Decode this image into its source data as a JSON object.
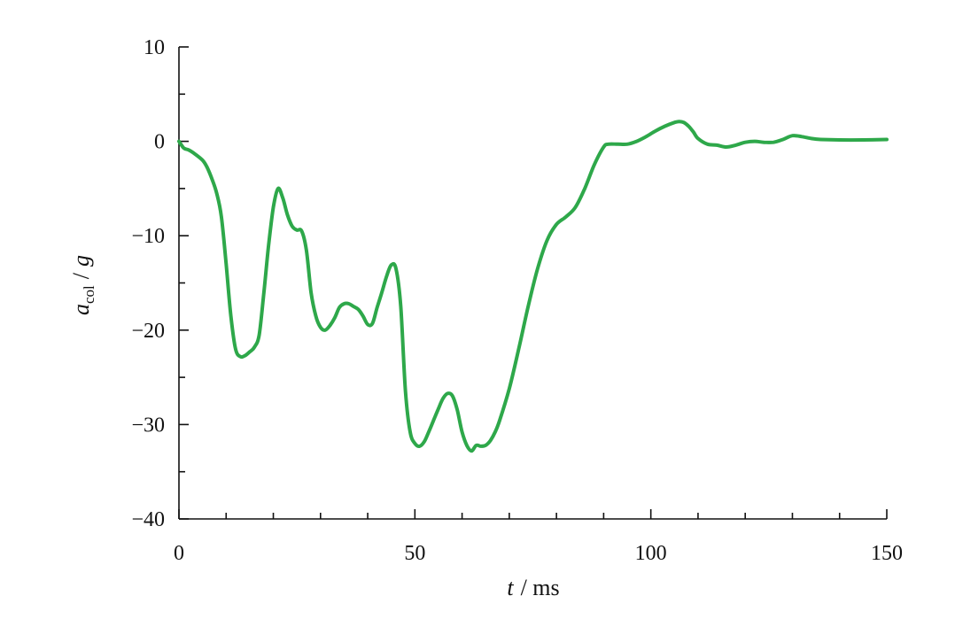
{
  "chart_data": {
    "type": "line",
    "title": "",
    "xlabel": {
      "var": "t",
      "unit": "/ ms"
    },
    "ylabel": {
      "var": "a",
      "sub": "col",
      "unit": "/",
      "unit_var": "g"
    },
    "xlim": [
      0,
      150
    ],
    "ylim": [
      -40,
      10
    ],
    "xticks": [
      0,
      50,
      100,
      150
    ],
    "yticks": [
      10,
      0,
      -10,
      -20,
      -30,
      -40
    ],
    "x_minor_step": 10,
    "y_minor_step": 5,
    "grid": false,
    "legend": "none",
    "series": [
      {
        "color": "#2ea84a",
        "points": [
          [
            0,
            0
          ],
          [
            1,
            -0.7
          ],
          [
            2,
            -0.9
          ],
          [
            3,
            -1.2
          ],
          [
            5,
            -2.0
          ],
          [
            6,
            -2.8
          ],
          [
            7,
            -4.0
          ],
          [
            8,
            -5.5
          ],
          [
            9,
            -8.0
          ],
          [
            10,
            -13.0
          ],
          [
            11,
            -18.5
          ],
          [
            12,
            -22.0
          ],
          [
            13,
            -22.8
          ],
          [
            14,
            -22.7
          ],
          [
            15,
            -22.3
          ],
          [
            16,
            -21.8
          ],
          [
            17,
            -20.5
          ],
          [
            18,
            -16.0
          ],
          [
            19,
            -11.0
          ],
          [
            20,
            -7.0
          ],
          [
            21,
            -5.0
          ],
          [
            22,
            -6.0
          ],
          [
            23,
            -7.8
          ],
          [
            24,
            -9.0
          ],
          [
            25,
            -9.4
          ],
          [
            26,
            -9.5
          ],
          [
            27,
            -11.5
          ],
          [
            28,
            -16.0
          ],
          [
            29,
            -18.5
          ],
          [
            30,
            -19.7
          ],
          [
            31,
            -20.0
          ],
          [
            32,
            -19.5
          ],
          [
            33,
            -18.7
          ],
          [
            34,
            -17.6
          ],
          [
            35,
            -17.2
          ],
          [
            36,
            -17.2
          ],
          [
            37,
            -17.5
          ],
          [
            38,
            -17.8
          ],
          [
            39,
            -18.5
          ],
          [
            40,
            -19.4
          ],
          [
            41,
            -19.3
          ],
          [
            42,
            -17.6
          ],
          [
            43,
            -16.0
          ],
          [
            44,
            -14.3
          ],
          [
            45,
            -13.1
          ],
          [
            46,
            -13.5
          ],
          [
            47,
            -17.5
          ],
          [
            48,
            -26.5
          ],
          [
            49,
            -30.8
          ],
          [
            50,
            -32.0
          ],
          [
            51,
            -32.3
          ],
          [
            52,
            -31.8
          ],
          [
            53,
            -30.7
          ],
          [
            54,
            -29.5
          ],
          [
            55,
            -28.3
          ],
          [
            56,
            -27.2
          ],
          [
            57,
            -26.7
          ],
          [
            58,
            -27.0
          ],
          [
            59,
            -28.5
          ],
          [
            60,
            -30.8
          ],
          [
            61,
            -32.2
          ],
          [
            62,
            -32.8
          ],
          [
            63,
            -32.2
          ],
          [
            64,
            -32.3
          ],
          [
            65,
            -32.2
          ],
          [
            66,
            -31.7
          ],
          [
            67,
            -30.8
          ],
          [
            68,
            -29.5
          ],
          [
            70,
            -26.2
          ],
          [
            72,
            -22.0
          ],
          [
            74,
            -17.5
          ],
          [
            76,
            -13.5
          ],
          [
            78,
            -10.5
          ],
          [
            80,
            -8.8
          ],
          [
            82,
            -8.0
          ],
          [
            84,
            -7.0
          ],
          [
            86,
            -5.0
          ],
          [
            88,
            -2.5
          ],
          [
            90,
            -0.6
          ],
          [
            91,
            -0.3
          ],
          [
            93,
            -0.3
          ],
          [
            95,
            -0.3
          ],
          [
            97,
            0.0
          ],
          [
            99,
            0.5
          ],
          [
            101,
            1.1
          ],
          [
            103,
            1.6
          ],
          [
            105,
            2.0
          ],
          [
            106,
            2.1
          ],
          [
            107,
            2.0
          ],
          [
            108,
            1.6
          ],
          [
            109,
            1.0
          ],
          [
            110,
            0.3
          ],
          [
            112,
            -0.3
          ],
          [
            114,
            -0.4
          ],
          [
            116,
            -0.6
          ],
          [
            118,
            -0.4
          ],
          [
            120,
            -0.1
          ],
          [
            122,
            0.0
          ],
          [
            124,
            -0.1
          ],
          [
            126,
            -0.1
          ],
          [
            128,
            0.2
          ],
          [
            130,
            0.6
          ],
          [
            132,
            0.5
          ],
          [
            134,
            0.3
          ],
          [
            136,
            0.2
          ],
          [
            140,
            0.15
          ],
          [
            145,
            0.15
          ],
          [
            150,
            0.2
          ]
        ]
      }
    ]
  }
}
